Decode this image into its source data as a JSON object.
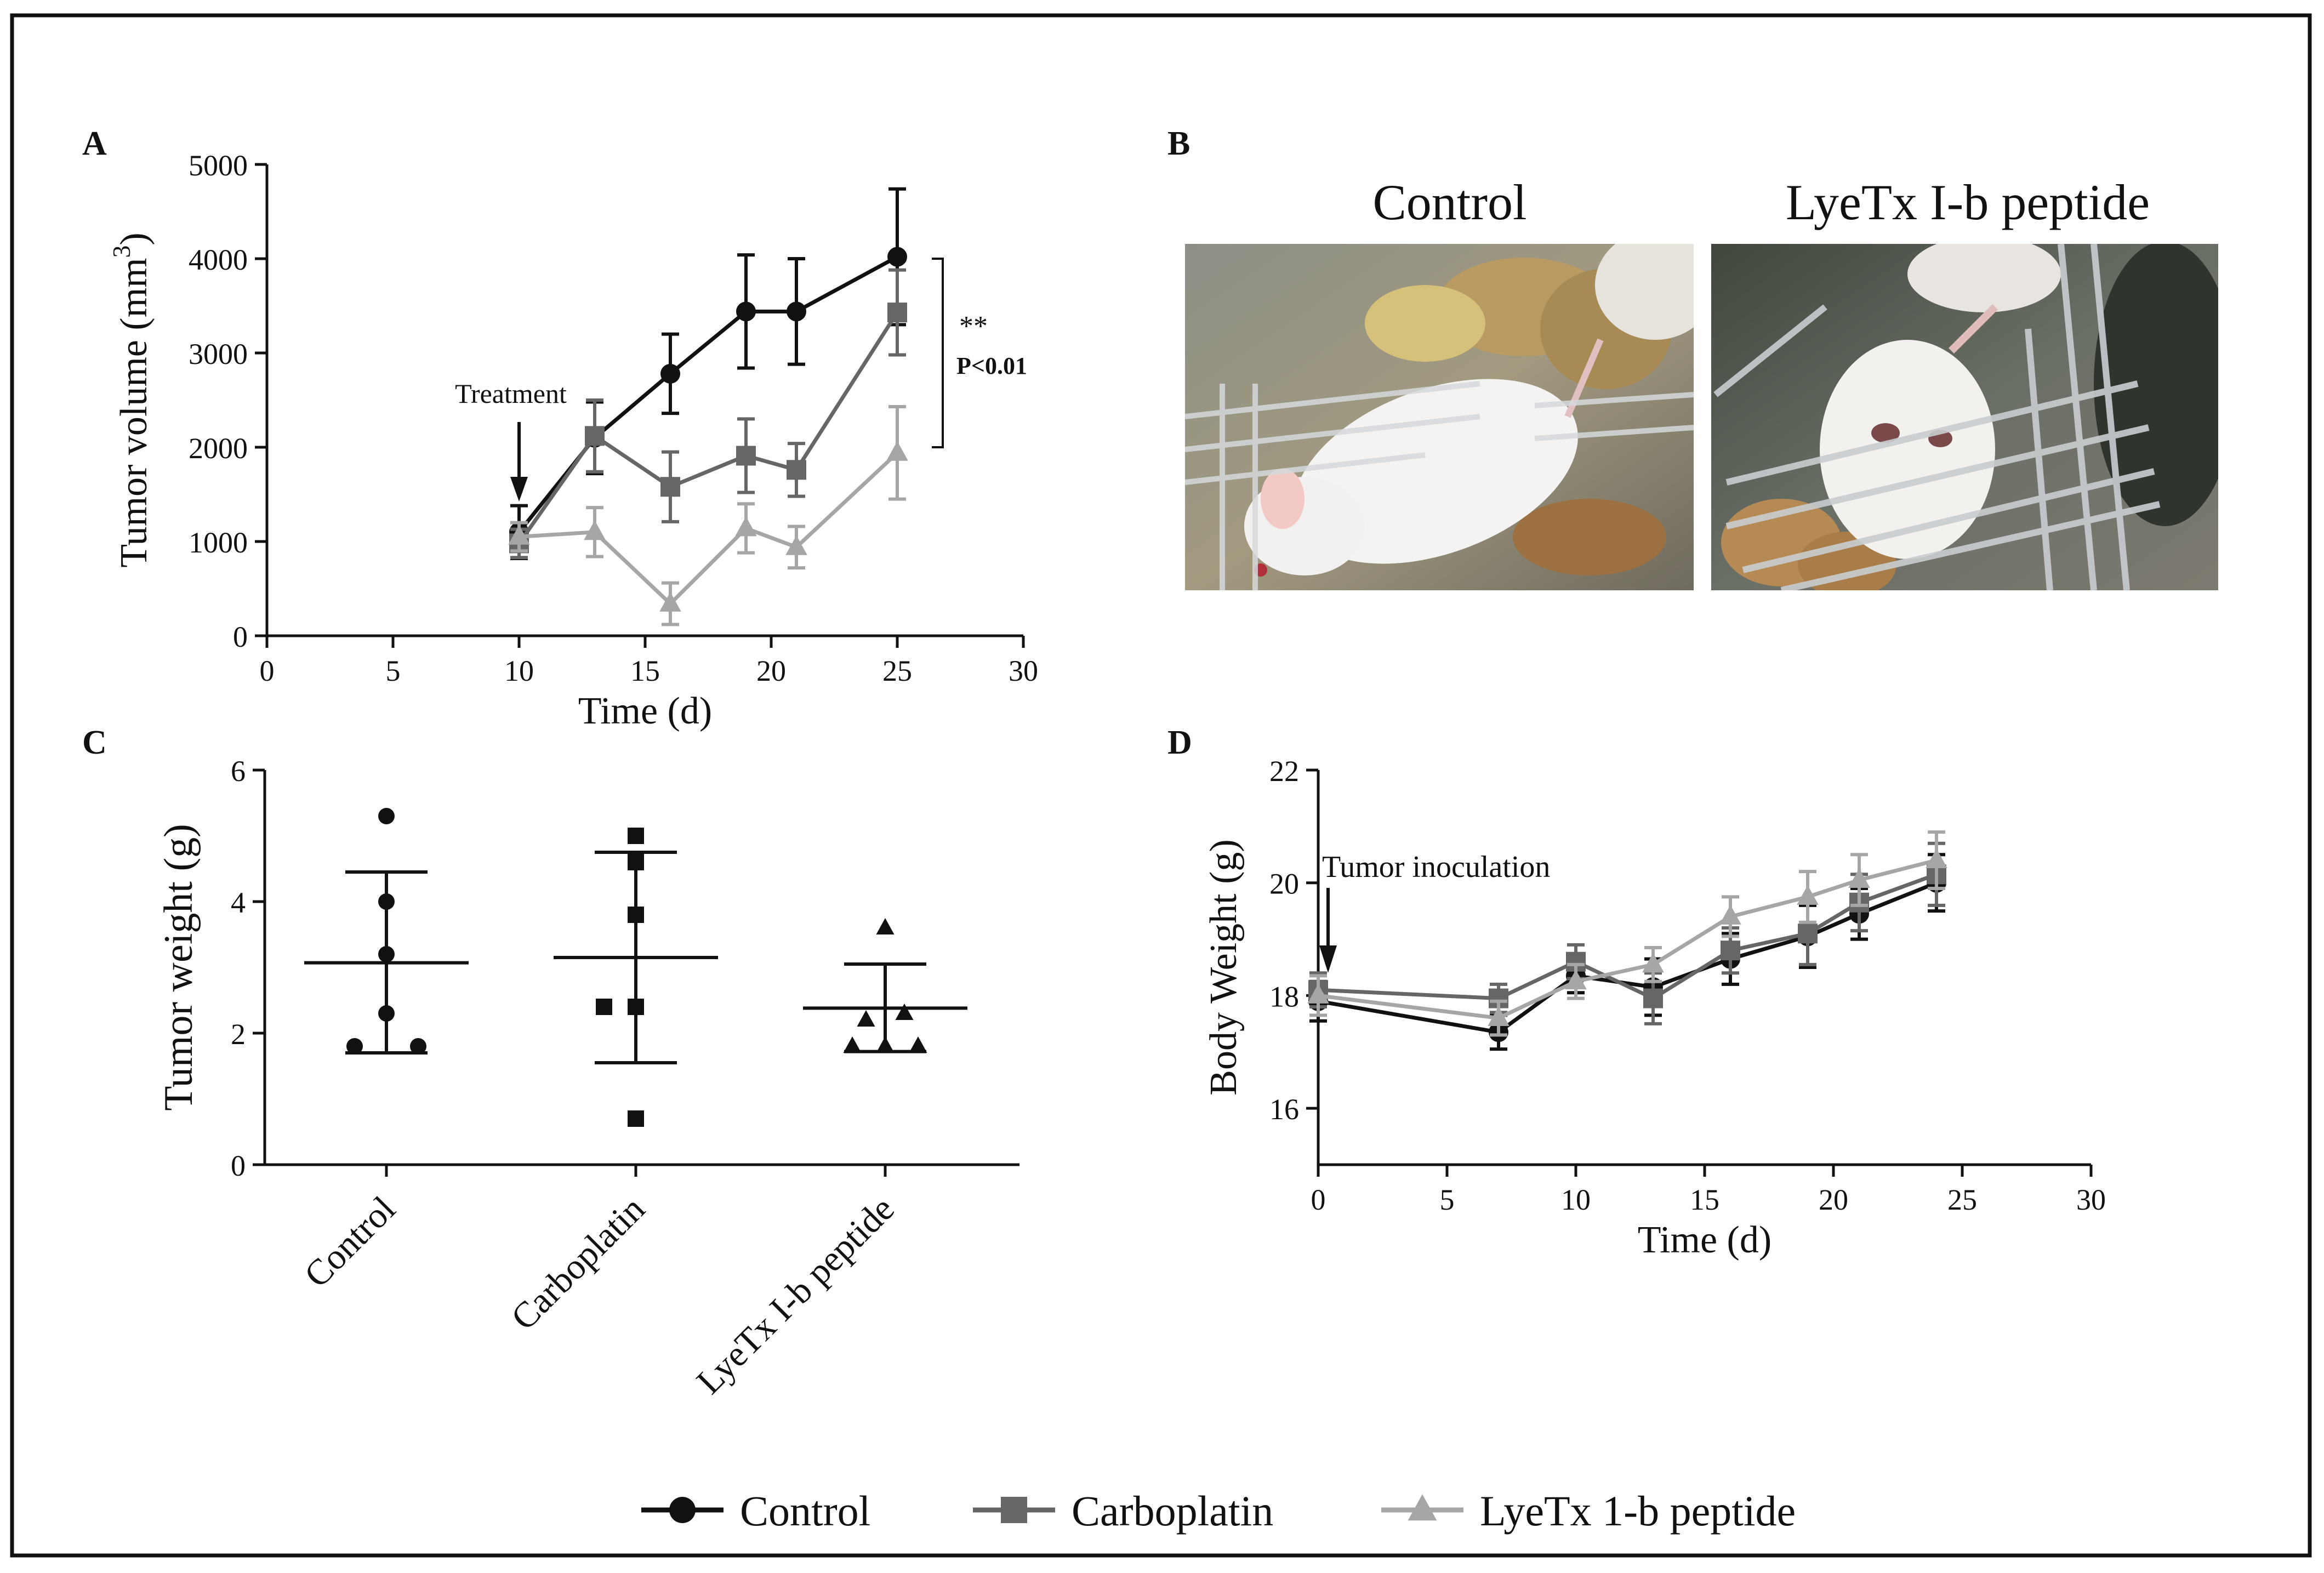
{
  "figure": {
    "panel_labels": [
      "A",
      "B",
      "C",
      "D"
    ],
    "legend": [
      {
        "name": "Control",
        "color": "#111111",
        "marker": "circle"
      },
      {
        "name": "Carboplatin",
        "color": "#666666",
        "marker": "square"
      },
      {
        "name": "LyeTx 1-b peptide",
        "color": "#a6a6a6",
        "marker": "triangle"
      }
    ],
    "photos": {
      "left_title": "Control",
      "right_title": "LyeTx I-b peptide",
      "left_icon": "white-mouse-in-cage-image",
      "right_icon": "white-mouse-in-cage-image"
    }
  },
  "chart_data": [
    {
      "id": "A",
      "type": "line",
      "xlabel": "Time (d)",
      "ylabel": "Tumor volume (mm",
      "ylabel_sup": "3",
      "ylabel_close": ")",
      "xlim": [
        0,
        30
      ],
      "ylim": [
        0,
        5000
      ],
      "xticks": [
        0,
        5,
        10,
        15,
        20,
        25,
        30
      ],
      "yticks": [
        0,
        1000,
        2000,
        3000,
        4000,
        5000
      ],
      "annotation": "Treatment",
      "annotation_x": 10,
      "significance": {
        "stars": "**",
        "text": "P<0.01",
        "y_from": 2000,
        "y_to": 4000
      },
      "series": [
        {
          "name": "Control",
          "color": "#111111",
          "marker": "circle",
          "x": [
            10,
            13,
            16,
            19,
            21,
            25
          ],
          "y": [
            1100,
            2100,
            2780,
            3440,
            3440,
            4020
          ],
          "err": [
            280,
            380,
            420,
            600,
            560,
            720
          ]
        },
        {
          "name": "Carboplatin",
          "color": "#666666",
          "marker": "square",
          "x": [
            10,
            13,
            16,
            19,
            21,
            25
          ],
          "y": [
            980,
            2120,
            1580,
            1910,
            1760,
            3430
          ],
          "err": [
            150,
            380,
            370,
            390,
            280,
            450
          ]
        },
        {
          "name": "LyeTx 1-b peptide",
          "color": "#a6a6a6",
          "marker": "triangle",
          "x": [
            10,
            13,
            16,
            19,
            21,
            25
          ],
          "y": [
            1050,
            1100,
            340,
            1140,
            940,
            1940
          ],
          "err": [
            150,
            260,
            220,
            260,
            220,
            490
          ]
        }
      ]
    },
    {
      "id": "C",
      "type": "scatter",
      "ylabel": "Tumor weight (g)",
      "ylim": [
        0,
        6
      ],
      "yticks": [
        0,
        2,
        4,
        6
      ],
      "categories": [
        "Control",
        "Carboplatin",
        "LyeTx I-b peptide"
      ],
      "groups": [
        {
          "name": "Control",
          "marker": "circle",
          "points": [
            5.3,
            4.0,
            3.2,
            2.3,
            1.8,
            1.8
          ],
          "mean": 3.07,
          "sd_low": 1.7,
          "sd_high": 4.45
        },
        {
          "name": "Carboplatin",
          "marker": "square",
          "points": [
            5.0,
            4.6,
            3.8,
            2.4,
            2.4,
            0.7
          ],
          "mean": 3.15,
          "sd_low": 1.55,
          "sd_high": 4.75
        },
        {
          "name": "LyeTx I-b peptide",
          "marker": "triangle",
          "points": [
            3.6,
            2.3,
            2.2,
            1.8,
            1.8,
            1.8
          ],
          "mean": 2.38,
          "sd_low": 1.72,
          "sd_high": 3.05
        }
      ]
    },
    {
      "id": "D",
      "type": "line",
      "xlabel": "Time (d)",
      "ylabel": "Body Weight (g)",
      "xlim": [
        0,
        30
      ],
      "ylim": [
        15,
        22
      ],
      "xticks": [
        0,
        5,
        10,
        15,
        20,
        25,
        30
      ],
      "yticks": [
        16,
        18,
        20,
        22
      ],
      "annotation": "Tumor inoculation",
      "annotation_x": 0,
      "series": [
        {
          "name": "Control",
          "color": "#111111",
          "marker": "circle",
          "x": [
            0,
            7,
            10,
            13,
            16,
            19,
            21,
            24
          ],
          "y": [
            17.9,
            17.35,
            18.35,
            18.15,
            18.65,
            19.05,
            19.45,
            20.0
          ],
          "err": [
            0.35,
            0.3,
            0.3,
            0.5,
            0.45,
            0.55,
            0.45,
            0.5
          ]
        },
        {
          "name": "Carboplatin",
          "color": "#666666",
          "marker": "square",
          "x": [
            0,
            7,
            10,
            13,
            16,
            19,
            21,
            24
          ],
          "y": [
            18.1,
            17.95,
            18.6,
            17.95,
            18.8,
            19.1,
            19.65,
            20.15
          ],
          "err": [
            0.3,
            0.25,
            0.3,
            0.45,
            0.4,
            0.55,
            0.5,
            0.55
          ]
        },
        {
          "name": "LyeTx 1-b peptide",
          "color": "#a6a6a6",
          "marker": "triangle",
          "x": [
            0,
            7,
            10,
            13,
            16,
            19,
            21,
            24
          ],
          "y": [
            18.0,
            17.6,
            18.25,
            18.55,
            19.4,
            19.75,
            20.05,
            20.4
          ],
          "err": [
            0.35,
            0.3,
            0.3,
            0.3,
            0.35,
            0.45,
            0.45,
            0.5
          ]
        }
      ]
    }
  ]
}
